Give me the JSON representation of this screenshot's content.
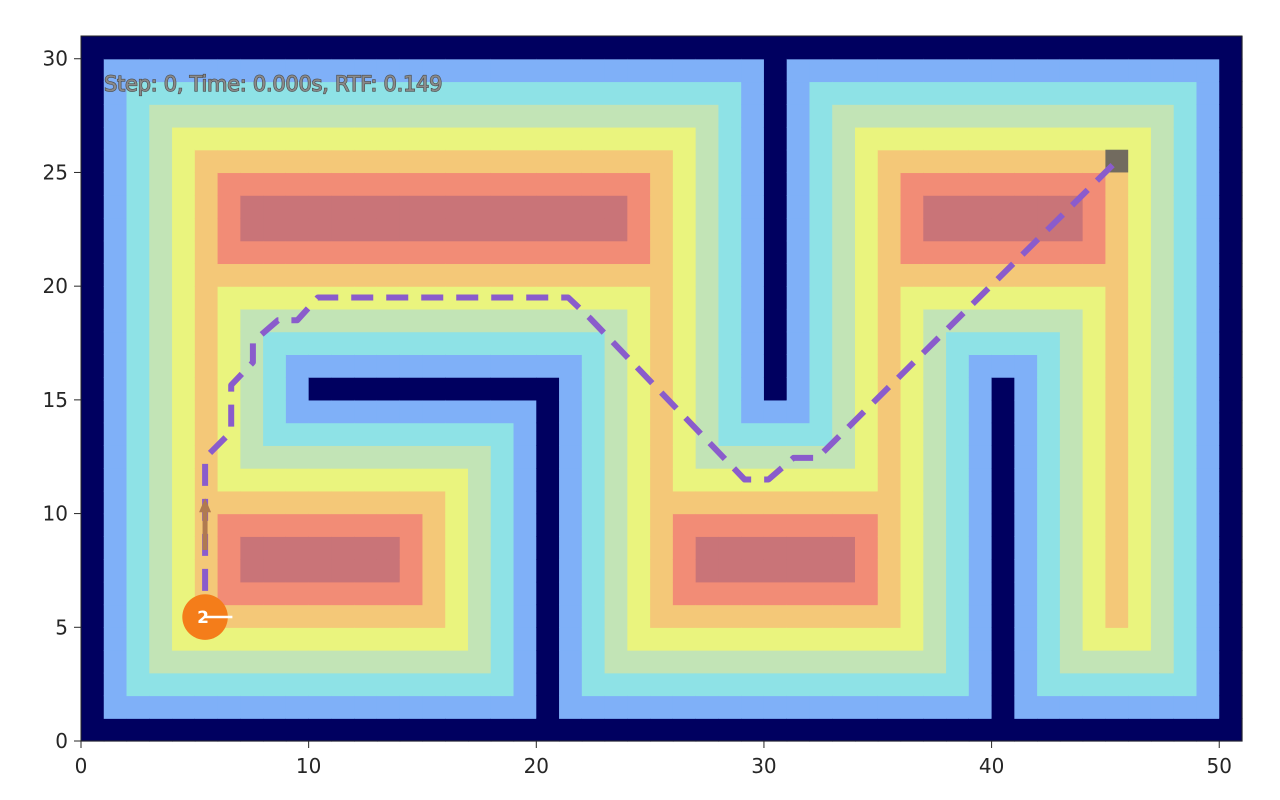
{
  "chart_data": {
    "type": "heatmap",
    "title": "",
    "xlabel": "",
    "ylabel": "",
    "xlim": [
      0,
      51
    ],
    "ylim": [
      0,
      31
    ],
    "xticks": [
      0,
      10,
      20,
      30,
      40,
      50
    ],
    "yticks": [
      0,
      5,
      10,
      15,
      20,
      25,
      30
    ],
    "grid": false,
    "grid_size": {
      "width": 51,
      "height": 31
    },
    "walls": [
      {
        "name": "outer-left",
        "x0": 0,
        "x1": 0,
        "y0": 0,
        "y1": 30
      },
      {
        "name": "outer-right",
        "x0": 50,
        "x1": 50,
        "y0": 0,
        "y1": 30
      },
      {
        "name": "outer-bottom",
        "x0": 0,
        "x1": 50,
        "y0": 0,
        "y1": 0
      },
      {
        "name": "outer-top",
        "x0": 0,
        "x1": 50,
        "y0": 30,
        "y1": 30
      },
      {
        "name": "center-top",
        "x0": 30,
        "x1": 30,
        "y0": 15,
        "y1": 30
      },
      {
        "name": "left-inner-horizontal",
        "x0": 10,
        "x1": 20,
        "y0": 15,
        "y1": 15
      },
      {
        "name": "left-inner-vertical",
        "x0": 20,
        "x1": 20,
        "y0": 0,
        "y1": 15
      },
      {
        "name": "right-inner-vertical",
        "x0": 40,
        "x1": 40,
        "y0": 0,
        "y1": 15
      }
    ],
    "distance_colormap": {
      "0": "#000060",
      "1": "#7fb0f8",
      "2": "#8ee2e6",
      "3": "#c2e4b6",
      "4": "#eaf47e",
      "5": "#f4c878",
      "6": "#f28c76",
      "7": "#c97478"
    },
    "path": {
      "color": "#8a5ccc",
      "style": "dashed",
      "points": [
        [
          5.45,
          6.6
        ],
        [
          5.45,
          12.45
        ],
        [
          6.6,
          13.6
        ],
        [
          6.6,
          15.65
        ],
        [
          7.55,
          16.65
        ],
        [
          7.55,
          17.55
        ],
        [
          8.65,
          18.5
        ],
        [
          9.5,
          18.5
        ],
        [
          10.4,
          19.5
        ],
        [
          21.4,
          19.5
        ],
        [
          22.35,
          18.6
        ],
        [
          29.15,
          11.5
        ],
        [
          30.2,
          11.5
        ],
        [
          31.3,
          12.45
        ],
        [
          32.35,
          12.45
        ],
        [
          45.55,
          25.55
        ]
      ]
    },
    "goal": {
      "cell": [
        45,
        25
      ],
      "color": "#5a5a5a"
    },
    "robot": {
      "x": 5.45,
      "y": 5.45,
      "radius": 1.0,
      "heading_deg": 0,
      "color": "#f47d1a",
      "label": "2"
    },
    "start_arrow": {
      "from": [
        5.45,
        8.4
      ],
      "to": [
        5.45,
        10.5
      ],
      "color": "#b07a50"
    },
    "annotation": "Step: 0, Time: 0.000s, RTF: 0.149"
  },
  "overlay": {
    "status_text": "Step: 0, Time: 0.000s, RTF: 0.149"
  },
  "axes": {
    "x_tick_labels": [
      "0",
      "10",
      "20",
      "30",
      "40",
      "50"
    ],
    "y_tick_labels": [
      "0",
      "5",
      "10",
      "15",
      "20",
      "25",
      "30"
    ]
  },
  "robot": {
    "label": "2"
  }
}
